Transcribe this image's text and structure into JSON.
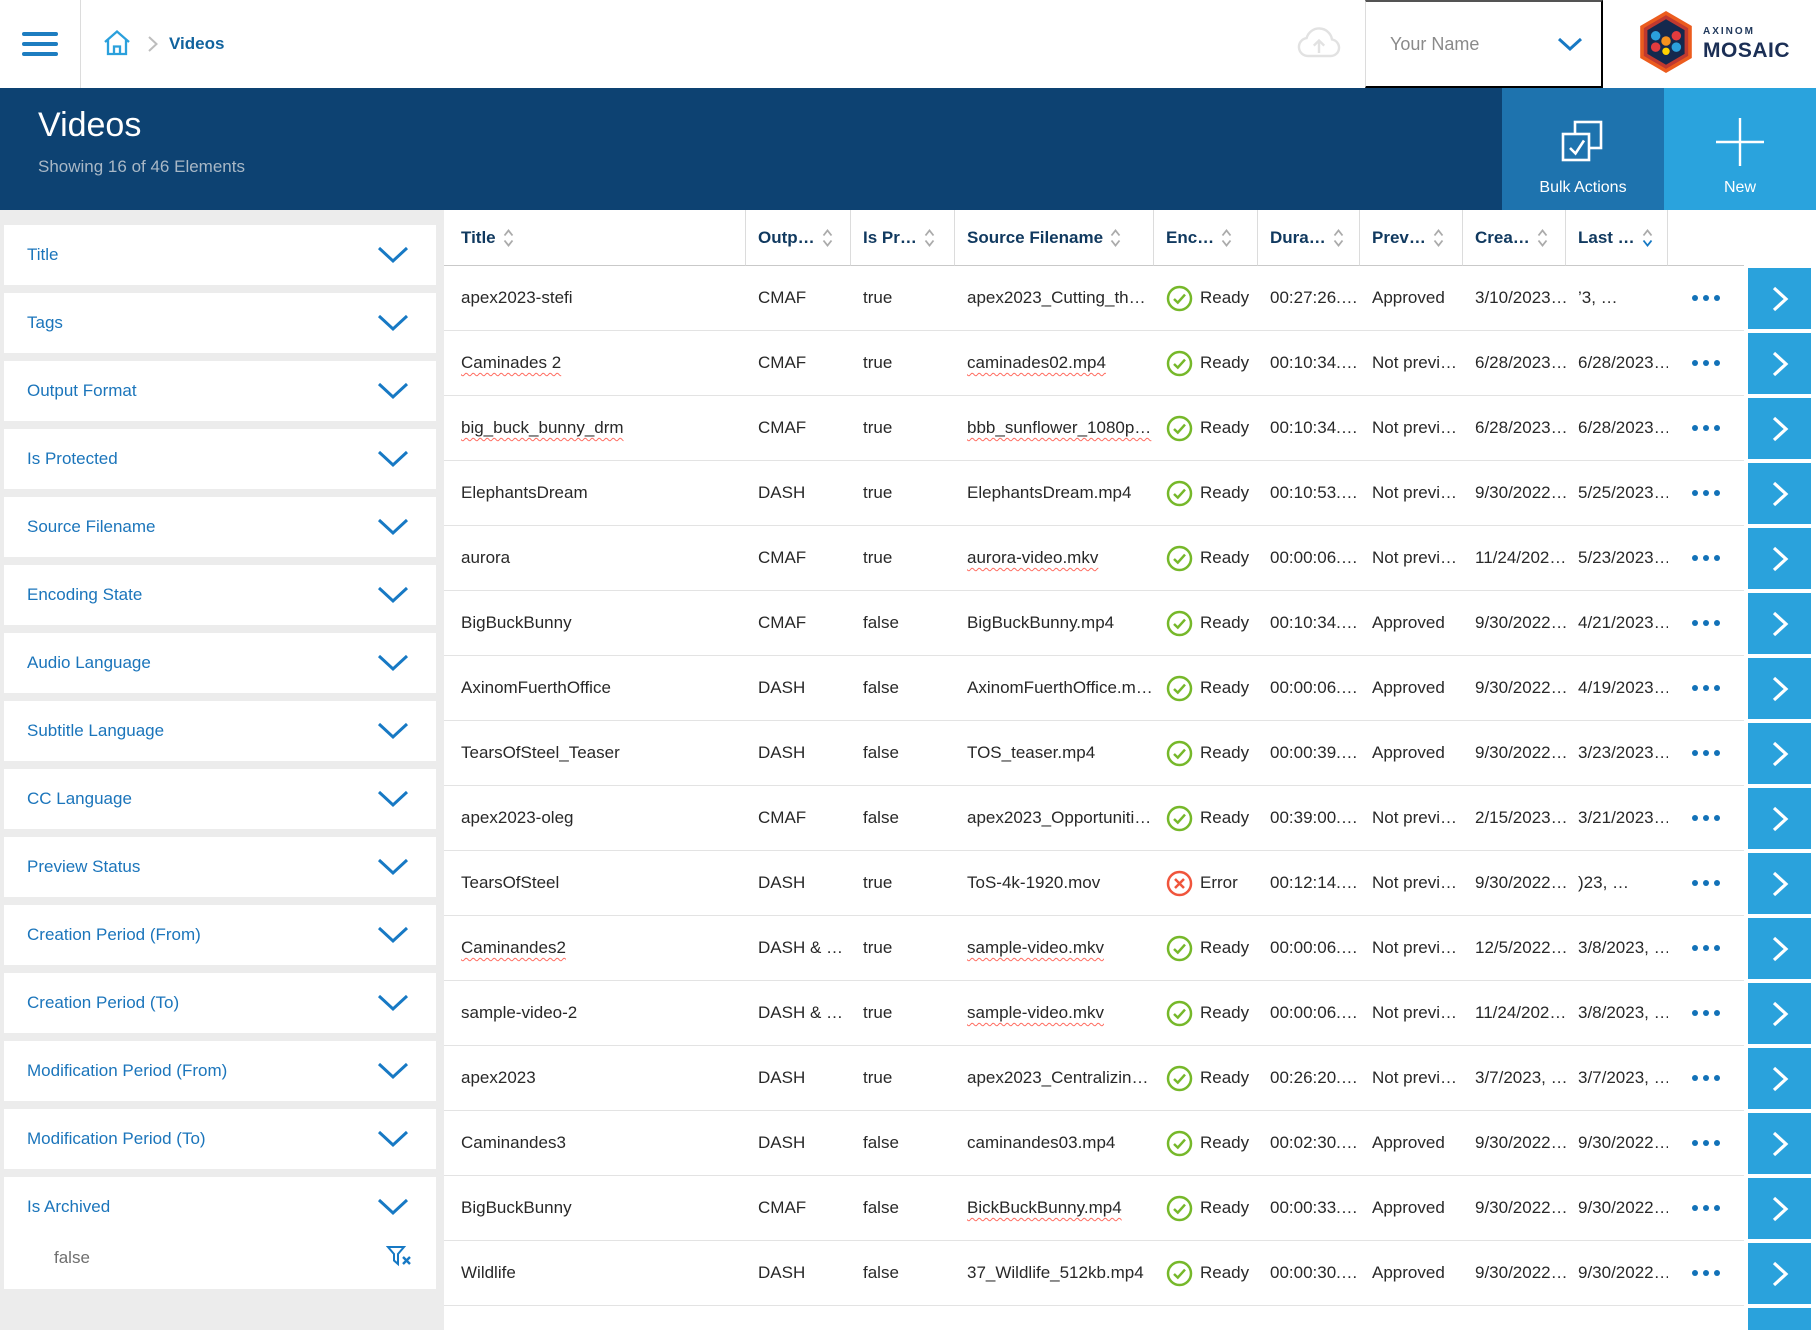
{
  "topbar": {
    "breadcrumb_current": "Videos",
    "user_name": "Your Name",
    "brand_top": "AXINOM",
    "brand_bottom": "MOSAIC"
  },
  "header": {
    "title": "Videos",
    "subtitle": "Showing 16 of 46 Elements",
    "bulk_actions_label": "Bulk Actions",
    "new_label": "New"
  },
  "sidebar": {
    "filters": [
      "Title",
      "Tags",
      "Output Format",
      "Is Protected",
      "Source Filename",
      "Encoding State",
      "Audio Language",
      "Subtitle Language",
      "CC Language",
      "Preview Status",
      "Creation Period (From)",
      "Creation Period (To)",
      "Modification Period (From)",
      "Modification Period (To)"
    ],
    "archived": {
      "label": "Is Archived",
      "value": "false"
    }
  },
  "table": {
    "columns": [
      {
        "label": "Title"
      },
      {
        "label": "Outp…"
      },
      {
        "label": "Is Pr…"
      },
      {
        "label": "Source Filename"
      },
      {
        "label": "Enc…"
      },
      {
        "label": "Dura…"
      },
      {
        "label": "Prev…"
      },
      {
        "label": "Crea…"
      },
      {
        "label": "Last …",
        "sorted": "desc"
      }
    ],
    "rows": [
      {
        "title": "apex2023-stefi",
        "output": "CMAF",
        "is_protected": "true",
        "source": "apex2023_Cutting_th…",
        "state": "Ready",
        "duration": "00:27:26.…",
        "preview": "Approved",
        "created": "3/10/2023…",
        "last_modified": "’3, …"
      },
      {
        "title": "Caminades 2",
        "title_underline": true,
        "output": "CMAF",
        "is_protected": "true",
        "source": "caminades02.mp4",
        "source_underline": true,
        "state": "Ready",
        "duration": "00:10:34.…",
        "preview": "Not previ…",
        "created": "6/28/2023…",
        "last_modified": "6/28/2023…"
      },
      {
        "title": "big_buck_bunny_drm",
        "title_underline": true,
        "output": "CMAF",
        "is_protected": "true",
        "source": "bbb_sunflower_1080p…",
        "source_underline": true,
        "state": "Ready",
        "duration": "00:10:34.…",
        "preview": "Not previ…",
        "created": "6/28/2023…",
        "last_modified": "6/28/2023…"
      },
      {
        "title": "ElephantsDream",
        "output": "DASH",
        "is_protected": "true",
        "source": "ElephantsDream.mp4",
        "state": "Ready",
        "duration": "00:10:53.…",
        "preview": "Not previ…",
        "created": "9/30/2022…",
        "last_modified": "5/25/2023…"
      },
      {
        "title": "aurora",
        "output": "CMAF",
        "is_protected": "true",
        "source": "aurora-video.mkv",
        "source_underline": true,
        "state": "Ready",
        "duration": "00:00:06.…",
        "preview": "Not previ…",
        "created": "11/24/202…",
        "last_modified": "5/23/2023…"
      },
      {
        "title": "BigBuckBunny",
        "output": "CMAF",
        "is_protected": "false",
        "source": "BigBuckBunny.mp4",
        "state": "Ready",
        "duration": "00:10:34.…",
        "preview": "Approved",
        "created": "9/30/2022…",
        "last_modified": "4/21/2023…"
      },
      {
        "title": "AxinomFuerthOffice",
        "output": "DASH",
        "is_protected": "false",
        "source": "AxinomFuerthOffice.m…",
        "state": "Ready",
        "duration": "00:00:06.…",
        "preview": "Approved",
        "created": "9/30/2022…",
        "last_modified": "4/19/2023…"
      },
      {
        "title": "TearsOfSteel_Teaser",
        "output": "DASH",
        "is_protected": "false",
        "source": "TOS_teaser.mp4",
        "state": "Ready",
        "duration": "00:00:39.…",
        "preview": "Approved",
        "created": "9/30/2022…",
        "last_modified": "3/23/2023…"
      },
      {
        "title": "apex2023-oleg",
        "output": "CMAF",
        "is_protected": "false",
        "source": "apex2023_Opportuniti…",
        "state": "Ready",
        "duration": "00:39:00.…",
        "preview": "Not previ…",
        "created": "2/15/2023…",
        "last_modified": "3/21/2023…"
      },
      {
        "title": "TearsOfSteel",
        "output": "DASH",
        "is_protected": "true",
        "source": "ToS-4k-1920.mov",
        "state": "Error",
        "duration": "00:12:14.…",
        "preview": "Not previ…",
        "created": "9/30/2022…",
        "last_modified": ")23, …"
      },
      {
        "title": "Caminandes2",
        "title_underline": true,
        "output": "DASH & …",
        "is_protected": "true",
        "source": "sample-video.mkv",
        "source_underline": true,
        "state": "Ready",
        "duration": "00:00:06.…",
        "preview": "Not previ…",
        "created": "12/5/2022…",
        "last_modified": "3/8/2023, …"
      },
      {
        "title": "sample-video-2",
        "output": "DASH & …",
        "is_protected": "true",
        "source": "sample-video.mkv",
        "source_underline": true,
        "state": "Ready",
        "duration": "00:00:06.…",
        "preview": "Not previ…",
        "created": "11/24/202…",
        "last_modified": "3/8/2023, …"
      },
      {
        "title": "apex2023",
        "output": "DASH",
        "is_protected": "true",
        "source": "apex2023_Centralizin…",
        "state": "Ready",
        "duration": "00:26:20.…",
        "preview": "Not previ…",
        "created": "3/7/2023, …",
        "last_modified": "3/7/2023, …"
      },
      {
        "title": "Caminandes3",
        "output": "DASH",
        "is_protected": "false",
        "source": "caminandes03.mp4",
        "state": "Ready",
        "duration": "00:02:30.…",
        "preview": "Approved",
        "created": "9/30/2022…",
        "last_modified": "9/30/2022…"
      },
      {
        "title": "BigBuckBunny",
        "output": "CMAF",
        "is_protected": "false",
        "source": "BickBuckBunny.mp4",
        "source_underline": true,
        "state": "Ready",
        "duration": "00:00:33.…",
        "preview": "Approved",
        "created": "9/30/2022…",
        "last_modified": "9/30/2022…"
      },
      {
        "title": "Wildlife",
        "output": "DASH",
        "is_protected": "false",
        "source": "37_Wildlife_512kb.mp4",
        "state": "Ready",
        "duration": "00:00:30.…",
        "preview": "Approved",
        "created": "9/30/2022…",
        "last_modified": "9/30/2022…"
      }
    ]
  },
  "icons": {
    "hamburger": "menu",
    "home": "house-outline",
    "breadcrumb_separator": "chevron-right",
    "cloud": "cloud-upload",
    "user_chevron": "chevron-down",
    "bulk_actions": "stacked-checkbox",
    "new": "plus",
    "filter_collapse": "chevron-down",
    "clear_filter": "funnel-x",
    "sort": "chevron-up-down",
    "ready": "check-circle",
    "error": "x-circle",
    "row_actions": "ellipsis",
    "row_open": "chevron-right"
  },
  "colors": {
    "dark_blue": "#0d4272",
    "mid_blue": "#1e73ae",
    "light_blue": "#2aa3dd",
    "accent_blue": "#1779c4",
    "link_blue": "#1b75bb",
    "status_ready_green": "#76b82a",
    "status_error_red": "#f0553c",
    "sort_gray": "#ababab"
  }
}
